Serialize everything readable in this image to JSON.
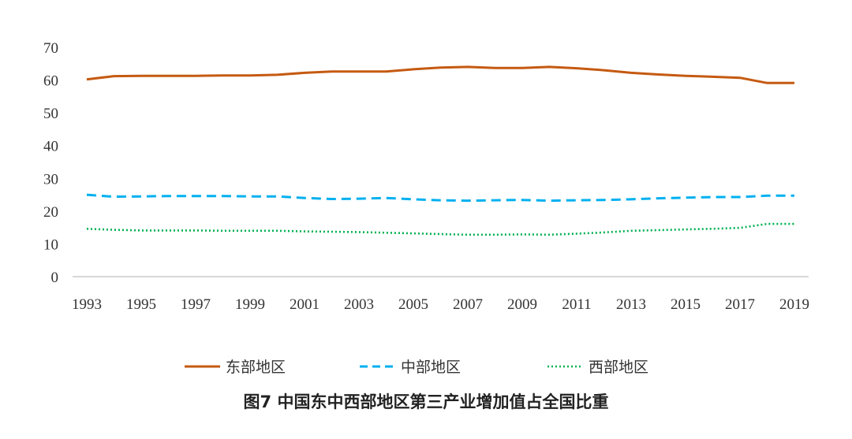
{
  "caption": "图7  中国东中西部地区第三产业增加值占全国比重",
  "chart_data": {
    "type": "line",
    "title": "图7  中国东中西部地区第三产业增加值占全国比重",
    "xlabel": "",
    "ylabel": "",
    "ylim": [
      0,
      70
    ],
    "yticks": [
      0,
      10,
      20,
      30,
      40,
      50,
      60,
      70
    ],
    "x": [
      1993,
      1994,
      1995,
      1996,
      1997,
      1998,
      1999,
      2000,
      2001,
      2002,
      2003,
      2004,
      2005,
      2006,
      2007,
      2008,
      2009,
      2010,
      2011,
      2012,
      2013,
      2014,
      2015,
      2016,
      2017,
      2018,
      2019
    ],
    "xtick_labels": [
      "1993",
      "1995",
      "1997",
      "1999",
      "2001",
      "2003",
      "2005",
      "2007",
      "2009",
      "2011",
      "2013",
      "2015",
      "2017",
      "2019"
    ],
    "grid": false,
    "legend_position": "bottom",
    "series": [
      {
        "name": "东部地区",
        "color": "#C55A11",
        "style": "solid",
        "values": [
          60.2,
          61.2,
          61.3,
          61.3,
          61.3,
          61.4,
          61.4,
          61.6,
          62.2,
          62.6,
          62.6,
          62.6,
          63.3,
          63.8,
          64.0,
          63.7,
          63.7,
          64.0,
          63.6,
          63.0,
          62.2,
          61.7,
          61.3,
          61.0,
          60.7,
          59.1,
          59.1
        ]
      },
      {
        "name": "中部地区",
        "color": "#00B0F0",
        "style": "dashed",
        "values": [
          25.0,
          24.4,
          24.5,
          24.6,
          24.6,
          24.6,
          24.5,
          24.5,
          24.0,
          23.7,
          23.8,
          24.0,
          23.6,
          23.3,
          23.2,
          23.3,
          23.4,
          23.2,
          23.3,
          23.4,
          23.6,
          23.9,
          24.1,
          24.3,
          24.3,
          24.7,
          24.7
        ]
      },
      {
        "name": "西部地区",
        "color": "#00B050",
        "style": "dotted",
        "values": [
          14.6,
          14.3,
          14.1,
          14.1,
          14.1,
          14.0,
          14.0,
          14.0,
          13.8,
          13.7,
          13.6,
          13.4,
          13.2,
          13.0,
          12.8,
          12.8,
          12.9,
          12.8,
          13.1,
          13.5,
          14.0,
          14.2,
          14.4,
          14.6,
          14.9,
          16.1,
          16.1
        ]
      }
    ]
  }
}
